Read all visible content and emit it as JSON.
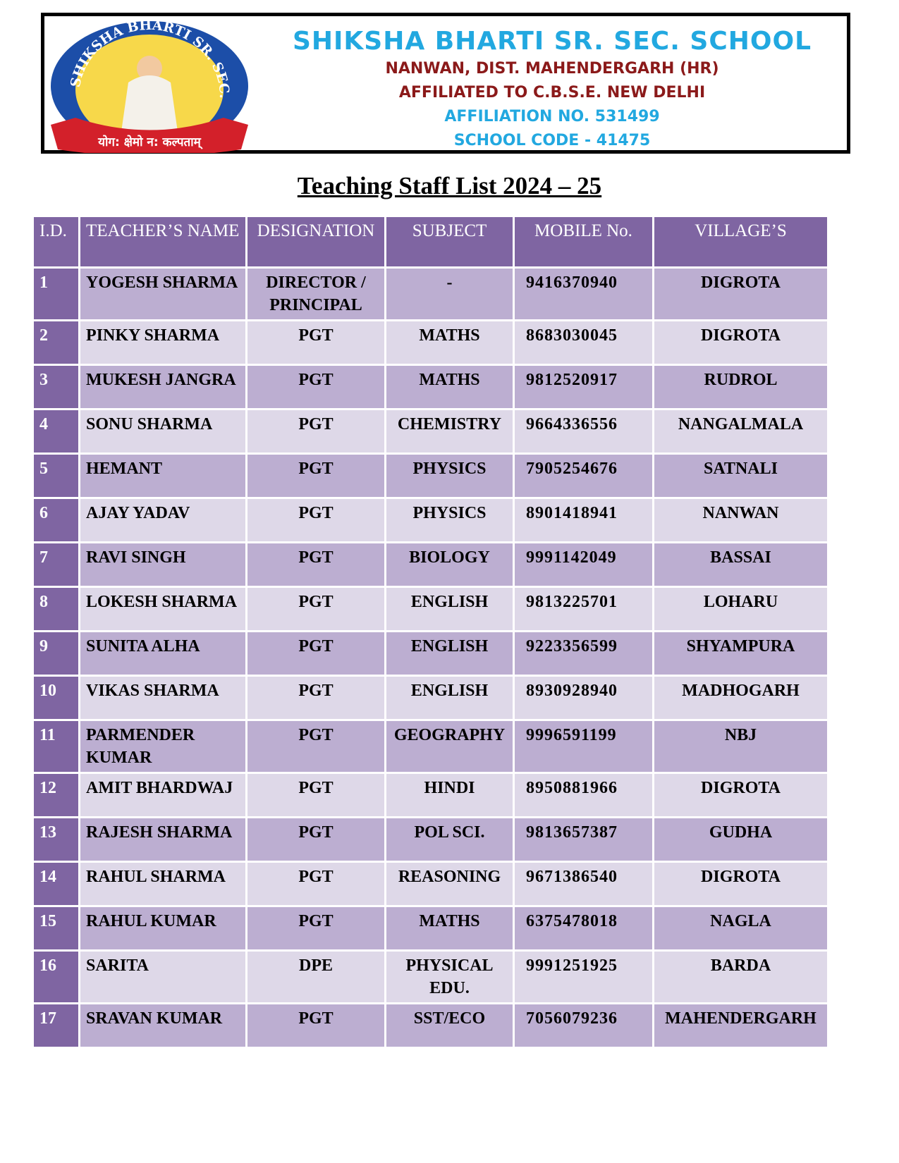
{
  "header": {
    "logo": {
      "ring_text": "SHIKSHA BHARTI SR. SEC. SCHOOL",
      "motto": "योग: क्षेमो न: कल्पताम्"
    },
    "school_name": "SHIKSHA BHARTI SR. SEC. SCHOOL",
    "address": "NANWAN, DIST. MAHENDERGARH (HR)",
    "affiliation": "AFFILIATED TO C.B.S.E. NEW DELHI",
    "affiliation_no": "AFFILIATION NO. 531499",
    "school_code": "SCHOOL CODE - 41475"
  },
  "title": "Teaching Staff  List 2024 – 25",
  "table": {
    "columns": [
      "I.D.",
      "TEACHER’S NAME",
      "DESIGNATION",
      "SUBJECT",
      "MOBILE No.",
      "VILLAGE’S"
    ],
    "rows": [
      {
        "id": "1",
        "name": "YOGESH SHARMA",
        "designation": "DIRECTOR / PRINCIPAL",
        "subject": "-",
        "mobile": "9416370940",
        "village": "DIGROTA"
      },
      {
        "id": "2",
        "name": "PINKY SHARMA",
        "designation": "PGT",
        "subject": "MATHS",
        "mobile": "8683030045",
        "village": "DIGROTA"
      },
      {
        "id": "3",
        "name": "MUKESH JANGRA",
        "designation": "PGT",
        "subject": "MATHS",
        "mobile": "9812520917",
        "village": "RUDROL"
      },
      {
        "id": "4",
        "name": "SONU SHARMA",
        "designation": "PGT",
        "subject": "CHEMISTRY",
        "mobile": "9664336556",
        "village": "NANGALMALA"
      },
      {
        "id": "5",
        "name": "HEMANT",
        "designation": "PGT",
        "subject": "PHYSICS",
        "mobile": "7905254676",
        "village": "SATNALI"
      },
      {
        "id": "6",
        "name": "AJAY YADAV",
        "designation": "PGT",
        "subject": "PHYSICS",
        "mobile": "8901418941",
        "village": "NANWAN"
      },
      {
        "id": "7",
        "name": "RAVI SINGH",
        "designation": "PGT",
        "subject": "BIOLOGY",
        "mobile": "9991142049",
        "village": "BASSAI"
      },
      {
        "id": "8",
        "name": "LOKESH SHARMA",
        "designation": "PGT",
        "subject": "ENGLISH",
        "mobile": "9813225701",
        "village": "LOHARU"
      },
      {
        "id": "9",
        "name": "SUNITA ALHA",
        "designation": "PGT",
        "subject": "ENGLISH",
        "mobile": "9223356599",
        "village": "SHYAMPURA"
      },
      {
        "id": "10",
        "name": "VIKAS SHARMA",
        "designation": "PGT",
        "subject": "ENGLISH",
        "mobile": "8930928940",
        "village": "MADHOGARH"
      },
      {
        "id": "11",
        "name": "PARMENDER KUMAR",
        "designation": "PGT",
        "subject": "GEOGRAPHY",
        "mobile": "9996591199",
        "village": "NBJ"
      },
      {
        "id": "12",
        "name": "AMIT BHARDWAJ",
        "designation": "PGT",
        "subject": "HINDI",
        "mobile": "8950881966",
        "village": "DIGROTA"
      },
      {
        "id": "13",
        "name": "RAJESH SHARMA",
        "designation": "PGT",
        "subject": "POL SCI.",
        "mobile": "9813657387",
        "village": "GUDHA"
      },
      {
        "id": "14",
        "name": "RAHUL SHARMA",
        "designation": "PGT",
        "subject": "REASONING",
        "mobile": "9671386540",
        "village": "DIGROTA"
      },
      {
        "id": "15",
        "name": "RAHUL KUMAR",
        "designation": "PGT",
        "subject": "MATHS",
        "mobile": "6375478018",
        "village": "NAGLA"
      },
      {
        "id": "16",
        "name": "SARITA",
        "designation": "DPE",
        "subject": "PHYSICAL EDU.",
        "mobile": "9991251925",
        "village": "BARDA"
      },
      {
        "id": "17",
        "name": "SRAVAN KUMAR",
        "designation": "PGT",
        "subject": "SST/ECO",
        "mobile": "7056079236",
        "village": "MAHENDERGARH"
      }
    ]
  },
  "colors": {
    "header_bg": "#7f65a2",
    "row_odd": "#bcaed1",
    "row_even": "#ded8e8",
    "school_name": "#22a8e0",
    "address": "#8b1a1a"
  }
}
